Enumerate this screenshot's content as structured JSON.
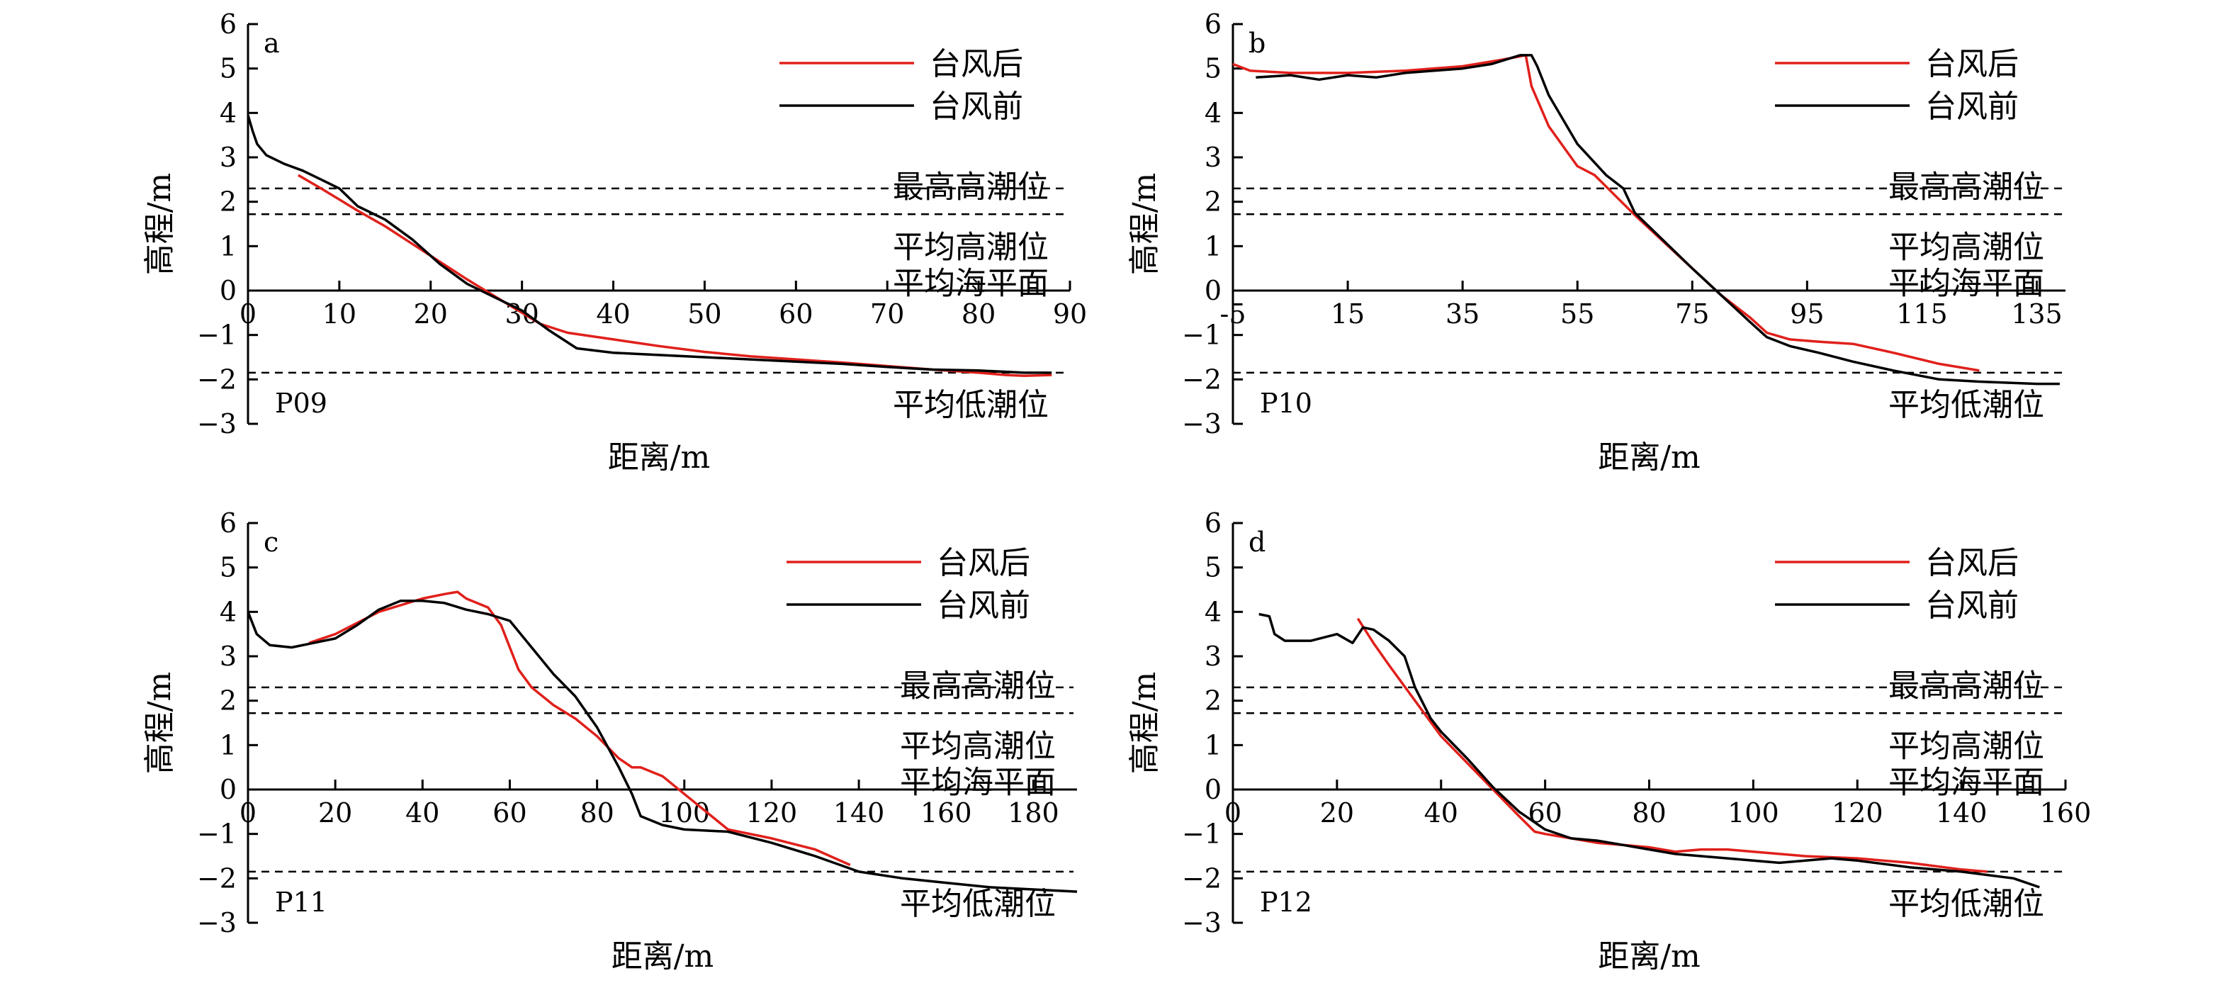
{
  "colors": {
    "after": "#e0201b",
    "before": "#000000",
    "axis": "#000000"
  },
  "chart_data": [
    {
      "type": "line",
      "panel": "a",
      "profile": "P09",
      "xlabel": "距离/m",
      "ylabel": "高程/m",
      "xlim": [
        0,
        90
      ],
      "ylim": [
        -3,
        6
      ],
      "xticks": [
        0,
        10,
        20,
        30,
        40,
        50,
        60,
        70,
        80,
        90
      ],
      "yticks": [
        -3,
        -2,
        -1,
        0,
        1,
        2,
        3,
        4,
        5,
        6
      ],
      "legend": [
        "台风后",
        "台风前"
      ],
      "legend_position": "top-right",
      "levels": [
        {
          "name": "最高高潮位",
          "value": 2.3
        },
        {
          "name": "平均高潮位",
          "value": 1.72
        },
        {
          "name": "平均海平面",
          "value": 0
        },
        {
          "name": "平均低潮位",
          "value": -1.85
        }
      ],
      "series": [
        {
          "name": "台风后",
          "color": "#e0201b",
          "x": [
            5.5,
            8,
            10,
            12,
            15,
            18,
            21,
            24,
            26,
            28,
            30,
            32,
            35,
            40,
            45,
            50,
            55,
            60,
            65,
            70,
            75,
            80,
            83,
            85,
            88
          ],
          "y": [
            2.6,
            2.3,
            2.05,
            1.8,
            1.45,
            1.05,
            0.65,
            0.25,
            0.0,
            -0.25,
            -0.5,
            -0.75,
            -0.95,
            -1.1,
            -1.25,
            -1.38,
            -1.48,
            -1.55,
            -1.62,
            -1.7,
            -1.78,
            -1.85,
            -1.9,
            -1.92,
            -1.9
          ]
        },
        {
          "name": "台风前",
          "color": "#000000",
          "x": [
            0,
            0.5,
            1,
            2,
            4,
            6,
            8,
            10,
            12,
            15,
            18,
            21,
            24,
            27,
            30,
            33,
            36,
            40,
            45,
            50,
            55,
            60,
            65,
            70,
            75,
            80,
            85,
            88
          ],
          "y": [
            3.95,
            3.6,
            3.3,
            3.05,
            2.85,
            2.7,
            2.5,
            2.3,
            1.9,
            1.6,
            1.15,
            0.6,
            0.15,
            -0.15,
            -0.45,
            -0.9,
            -1.3,
            -1.4,
            -1.45,
            -1.5,
            -1.55,
            -1.6,
            -1.65,
            -1.72,
            -1.78,
            -1.8,
            -1.85,
            -1.85
          ]
        }
      ]
    },
    {
      "type": "line",
      "panel": "b",
      "profile": "P10",
      "xlabel": "距离/m",
      "ylabel": "高程/m",
      "xlim": [
        -5,
        140
      ],
      "ylim": [
        -3,
        6
      ],
      "xticks": [
        -5,
        15,
        35,
        55,
        75,
        95,
        115,
        135
      ],
      "yticks": [
        -3,
        -2,
        -1,
        0,
        1,
        2,
        3,
        4,
        5,
        6
      ],
      "legend": [
        "台风后",
        "台风前"
      ],
      "legend_position": "top-right",
      "levels": [
        {
          "name": "最高高潮位",
          "value": 2.3
        },
        {
          "name": "平均高潮位",
          "value": 1.72
        },
        {
          "name": "平均海平面",
          "value": 0
        },
        {
          "name": "平均低潮位",
          "value": -1.85
        }
      ],
      "series": [
        {
          "name": "台风后",
          "color": "#e0201b",
          "x": [
            -5,
            -2,
            5,
            15,
            25,
            35,
            42,
            46,
            47,
            50,
            55,
            58,
            65,
            75,
            80,
            85,
            88,
            92,
            97,
            103,
            110,
            118,
            125
          ],
          "y": [
            5.1,
            4.95,
            4.9,
            4.9,
            4.95,
            5.05,
            5.2,
            5.3,
            4.6,
            3.7,
            2.8,
            2.6,
            1.7,
            0.5,
            -0.1,
            -0.6,
            -0.95,
            -1.1,
            -1.15,
            -1.2,
            -1.4,
            -1.65,
            -1.8
          ]
        },
        {
          "name": "台风前",
          "color": "#000000",
          "x": [
            -1,
            5,
            10,
            15,
            20,
            25,
            30,
            35,
            40,
            45,
            47,
            48,
            50,
            55,
            60,
            63,
            65,
            75,
            80,
            85,
            88,
            92,
            97,
            103,
            110,
            118,
            125,
            135,
            139
          ],
          "y": [
            4.8,
            4.85,
            4.75,
            4.85,
            4.8,
            4.9,
            4.95,
            5.0,
            5.1,
            5.3,
            5.3,
            5.05,
            4.4,
            3.3,
            2.6,
            2.3,
            1.75,
            0.5,
            -0.1,
            -0.7,
            -1.05,
            -1.25,
            -1.4,
            -1.6,
            -1.8,
            -2.0,
            -2.05,
            -2.1,
            -2.1
          ]
        }
      ]
    },
    {
      "type": "line",
      "panel": "c",
      "profile": "P11",
      "xlabel": "距离/m",
      "ylabel": "高程/m",
      "xlim": [
        0,
        190
      ],
      "ylim": [
        -3,
        6
      ],
      "xticks": [
        0,
        20,
        40,
        60,
        80,
        100,
        120,
        140,
        160,
        180
      ],
      "yticks": [
        -3,
        -2,
        -1,
        0,
        1,
        2,
        3,
        4,
        5,
        6
      ],
      "legend": [
        "台风后",
        "台风前"
      ],
      "legend_position": "top-right",
      "levels": [
        {
          "name": "最高高潮位",
          "value": 2.3
        },
        {
          "name": "平均高潮位",
          "value": 1.72
        },
        {
          "name": "平均海平面",
          "value": 0
        },
        {
          "name": "平均低潮位",
          "value": -1.85
        }
      ],
      "series": [
        {
          "name": "台风后",
          "color": "#e0201b",
          "x": [
            14,
            20,
            30,
            40,
            45,
            48,
            50,
            55,
            58,
            60,
            62,
            65,
            70,
            75,
            80,
            85,
            88,
            90,
            95,
            100,
            110,
            120,
            130,
            138
          ],
          "y": [
            3.3,
            3.5,
            4.0,
            4.3,
            4.4,
            4.45,
            4.3,
            4.1,
            3.7,
            3.2,
            2.7,
            2.3,
            1.9,
            1.6,
            1.2,
            0.7,
            0.5,
            0.5,
            0.3,
            -0.1,
            -0.9,
            -1.1,
            -1.35,
            -1.7
          ]
        },
        {
          "name": "台风前",
          "color": "#000000",
          "x": [
            0,
            2,
            5,
            10,
            15,
            20,
            25,
            30,
            35,
            40,
            45,
            50,
            55,
            60,
            65,
            70,
            75,
            80,
            85,
            88,
            90,
            95,
            100,
            110,
            120,
            130,
            140,
            150,
            160,
            170,
            180,
            190
          ],
          "y": [
            4.0,
            3.5,
            3.25,
            3.2,
            3.3,
            3.4,
            3.7,
            4.05,
            4.25,
            4.25,
            4.2,
            4.05,
            3.95,
            3.8,
            3.2,
            2.6,
            2.1,
            1.4,
            0.5,
            -0.1,
            -0.6,
            -0.8,
            -0.9,
            -0.95,
            -1.2,
            -1.5,
            -1.85,
            -2.0,
            -2.1,
            -2.2,
            -2.25,
            -2.3
          ]
        }
      ]
    },
    {
      "type": "line",
      "panel": "d",
      "profile": "P12",
      "xlabel": "距离/m",
      "ylabel": "高程/m",
      "xlim": [
        0,
        160
      ],
      "ylim": [
        -3,
        6
      ],
      "xticks": [
        0,
        20,
        40,
        60,
        80,
        100,
        120,
        140,
        160
      ],
      "yticks": [
        -3,
        -2,
        -1,
        0,
        1,
        2,
        3,
        4,
        5,
        6
      ],
      "legend": [
        "台风后",
        "台风前"
      ],
      "legend_position": "top-right",
      "levels": [
        {
          "name": "最高高潮位",
          "value": 2.3
        },
        {
          "name": "平均高潮位",
          "value": 1.72
        },
        {
          "name": "平均海平面",
          "value": 0
        },
        {
          "name": "平均低潮位",
          "value": -1.85
        }
      ],
      "series": [
        {
          "name": "台风后",
          "color": "#e0201b",
          "x": [
            24,
            27,
            30,
            35,
            40,
            45,
            50,
            55,
            58,
            60,
            65,
            70,
            75,
            80,
            85,
            90,
            95,
            100,
            110,
            120,
            130,
            140,
            145
          ],
          "y": [
            3.85,
            3.3,
            2.8,
            2.0,
            1.2,
            0.6,
            0.0,
            -0.6,
            -0.95,
            -1.0,
            -1.1,
            -1.2,
            -1.25,
            -1.3,
            -1.4,
            -1.35,
            -1.35,
            -1.4,
            -1.5,
            -1.55,
            -1.65,
            -1.8,
            -1.85
          ]
        },
        {
          "name": "台风前",
          "color": "#000000",
          "x": [
            5,
            7,
            8,
            10,
            15,
            20,
            23,
            25,
            27,
            30,
            33,
            35,
            38,
            40,
            45,
            50,
            55,
            60,
            65,
            70,
            75,
            80,
            85,
            90,
            95,
            100,
            105,
            110,
            115,
            120,
            130,
            140,
            150,
            155
          ],
          "y": [
            3.95,
            3.9,
            3.5,
            3.35,
            3.35,
            3.5,
            3.3,
            3.65,
            3.6,
            3.35,
            3.0,
            2.3,
            1.6,
            1.3,
            0.7,
            0.05,
            -0.5,
            -0.9,
            -1.1,
            -1.15,
            -1.25,
            -1.35,
            -1.45,
            -1.5,
            -1.55,
            -1.6,
            -1.65,
            -1.6,
            -1.55,
            -1.6,
            -1.75,
            -1.85,
            -2.0,
            -2.2
          ]
        }
      ]
    }
  ]
}
